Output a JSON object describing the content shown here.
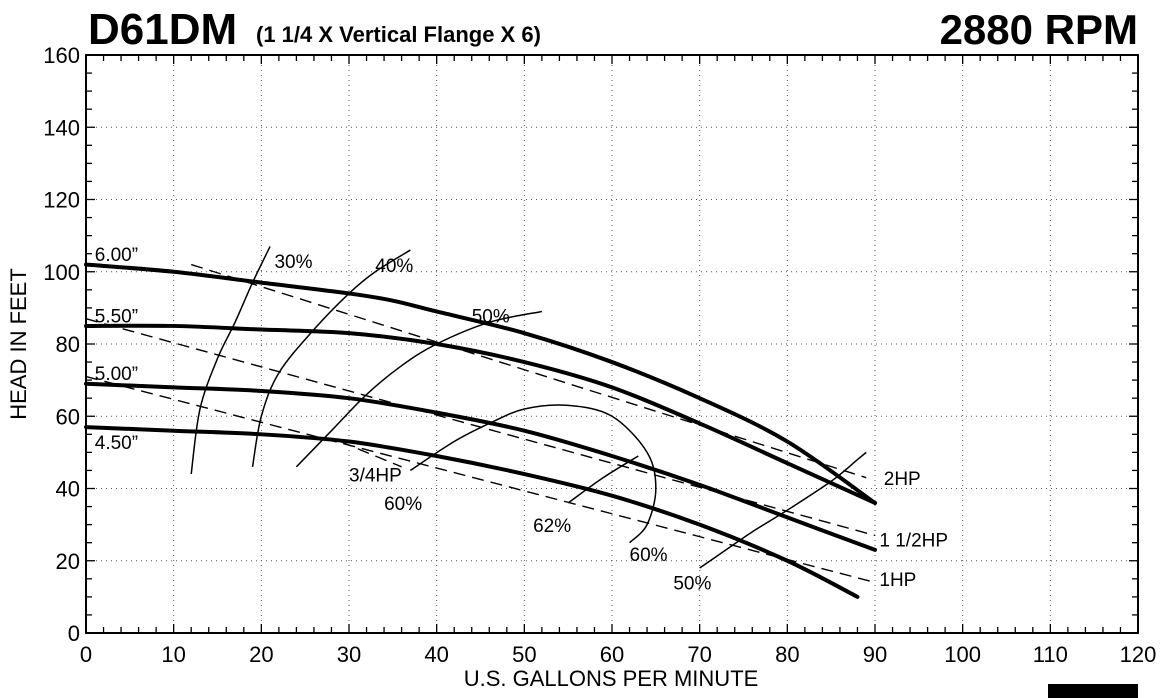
{
  "chart_data": {
    "type": "line",
    "title": "D61DM",
    "subtitle": "(1 1/4 X Vertical Flange X 6)",
    "speed_label": "2880 RPM",
    "xlabel": "U.S. GALLONS PER MINUTE",
    "ylabel": "HEAD IN FEET",
    "xlim": [
      0,
      120
    ],
    "ylim": [
      0,
      160
    ],
    "x_ticks": [
      0,
      10,
      20,
      30,
      40,
      50,
      60,
      70,
      80,
      90,
      100,
      110,
      120
    ],
    "y_ticks": [
      0,
      20,
      40,
      60,
      80,
      100,
      120,
      140,
      160
    ],
    "grid": true,
    "impeller_curves": [
      {
        "name": "6.00”",
        "points": [
          [
            0,
            102
          ],
          [
            10,
            100
          ],
          [
            20,
            97
          ],
          [
            30,
            94
          ],
          [
            35,
            92
          ],
          [
            40,
            89
          ],
          [
            50,
            83
          ],
          [
            60,
            75
          ],
          [
            70,
            65
          ],
          [
            80,
            53
          ],
          [
            90,
            36
          ]
        ]
      },
      {
        "name": "5.50”",
        "points": [
          [
            0,
            85
          ],
          [
            10,
            85
          ],
          [
            20,
            84
          ],
          [
            30,
            83
          ],
          [
            40,
            80
          ],
          [
            50,
            75
          ],
          [
            60,
            68
          ],
          [
            70,
            58
          ],
          [
            80,
            47
          ],
          [
            90,
            36
          ]
        ]
      },
      {
        "name": "5.00”",
        "points": [
          [
            0,
            69
          ],
          [
            10,
            68
          ],
          [
            20,
            67
          ],
          [
            30,
            65
          ],
          [
            40,
            61
          ],
          [
            50,
            56
          ],
          [
            60,
            49
          ],
          [
            70,
            41
          ],
          [
            80,
            32
          ],
          [
            90,
            23
          ]
        ]
      },
      {
        "name": "4.50”",
        "points": [
          [
            0,
            57
          ],
          [
            10,
            56
          ],
          [
            20,
            55
          ],
          [
            30,
            53
          ],
          [
            40,
            49
          ],
          [
            50,
            44
          ],
          [
            60,
            38
          ],
          [
            70,
            30
          ],
          [
            80,
            20
          ],
          [
            88,
            10
          ]
        ]
      }
    ],
    "horsepower_lines": [
      {
        "name": "2HP",
        "points": [
          [
            12,
            102
          ],
          [
            89,
            43
          ]
        ]
      },
      {
        "name": "1 1/2HP",
        "points": [
          [
            0,
            87
          ],
          [
            90,
            27
          ]
        ]
      },
      {
        "name": "1HP",
        "points": [
          [
            0,
            71
          ],
          [
            90,
            14
          ]
        ]
      },
      {
        "name": "3/4HP",
        "points": [
          [
            29,
            53
          ],
          [
            36,
            46
          ]
        ]
      }
    ],
    "efficiency_curves": [
      {
        "name": "30%",
        "points": [
          [
            12,
            44
          ],
          [
            13,
            62
          ],
          [
            15,
            76
          ],
          [
            17,
            86
          ],
          [
            19,
            97
          ],
          [
            21,
            107
          ]
        ]
      },
      {
        "name": "40%",
        "points": [
          [
            19,
            46
          ],
          [
            20,
            60
          ],
          [
            22,
            72
          ],
          [
            26,
            84
          ],
          [
            30,
            94
          ],
          [
            33,
            100
          ],
          [
            37,
            106
          ]
        ]
      },
      {
        "name": "50%",
        "points": [
          [
            24,
            46
          ],
          [
            28,
            56
          ],
          [
            32,
            66
          ],
          [
            36,
            74
          ],
          [
            40,
            80
          ],
          [
            46,
            86
          ],
          [
            52,
            89
          ]
        ]
      },
      {
        "name": "60%",
        "points": [
          [
            37,
            45
          ],
          [
            42,
            53
          ],
          [
            46,
            58
          ],
          [
            50,
            62
          ],
          [
            55,
            63
          ],
          [
            60,
            60
          ],
          [
            64,
            50
          ],
          [
            65,
            40
          ],
          [
            64,
            30
          ],
          [
            62,
            25
          ]
        ]
      },
      {
        "name": "62%",
        "points": [
          [
            55,
            36
          ],
          [
            59,
            43
          ],
          [
            63,
            49
          ]
        ]
      },
      {
        "name": "50%",
        "points": [
          [
            70,
            18
          ],
          [
            73,
            23
          ],
          [
            76,
            28
          ],
          [
            80,
            34
          ],
          [
            85,
            42
          ],
          [
            88,
            48
          ],
          [
            89,
            50
          ]
        ]
      }
    ],
    "annotations": [
      {
        "text": "6.00”",
        "x": 1,
        "y": 103
      },
      {
        "text": "5.50”",
        "x": 1,
        "y": 86
      },
      {
        "text": "5.00”",
        "x": 1,
        "y": 70
      },
      {
        "text": "4.50”",
        "x": 1,
        "y": 51
      },
      {
        "text": "30%",
        "x": 21.5,
        "y": 101
      },
      {
        "text": "40%",
        "x": 33,
        "y": 100
      },
      {
        "text": "50%",
        "x": 44,
        "y": 86
      },
      {
        "text": "3/4HP",
        "x": 30,
        "y": 42
      },
      {
        "text": "60%",
        "x": 34,
        "y": 34
      },
      {
        "text": "62%",
        "x": 51,
        "y": 28
      },
      {
        "text": "60%",
        "x": 62,
        "y": 20
      },
      {
        "text": "50%",
        "x": 67,
        "y": 12
      },
      {
        "text": "2HP",
        "x": 91,
        "y": 41
      },
      {
        "text": "1 1/2HP",
        "x": 90.5,
        "y": 24
      },
      {
        "text": "1HP",
        "x": 90.5,
        "y": 13
      }
    ]
  }
}
